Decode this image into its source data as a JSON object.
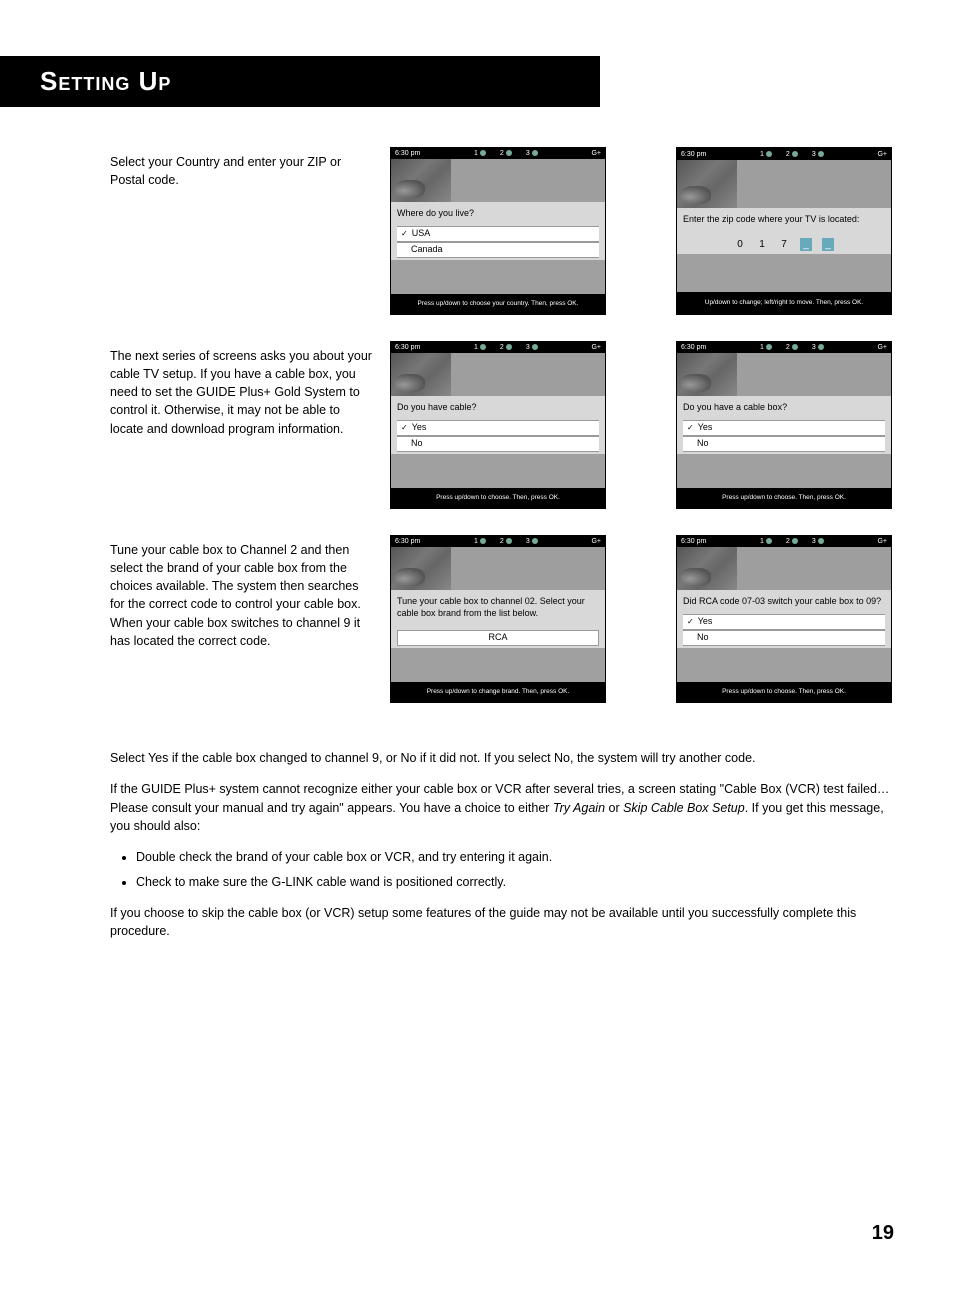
{
  "header": {
    "title": "Setting Up"
  },
  "rows": [
    {
      "desc": "Select your Country and enter your ZIP or Postal code.",
      "screens": [
        {
          "time": "6:30 pm",
          "prompt": "Where do you live?",
          "options": [
            {
              "label": "USA",
              "selected": true
            },
            {
              "label": "Canada",
              "selected": false
            }
          ],
          "footer": "Press up/down to choose your country.\nThen, press OK."
        },
        {
          "time": "6:30 pm",
          "prompt": "Enter the zip code where your TV is located:",
          "zip": [
            "0",
            "1",
            "7",
            "_",
            "_"
          ],
          "footer": "Up/down to change; left/right to move.\nThen, press OK."
        }
      ]
    },
    {
      "desc": "The next series of screens asks you about your cable TV setup. If you have a cable box, you need to set the GUIDE Plus+ Gold System to control it. Otherwise, it may not be able to locate and download program information.",
      "screens": [
        {
          "time": "6:30 pm",
          "prompt": "Do you have cable?",
          "options": [
            {
              "label": "Yes",
              "selected": true
            },
            {
              "label": "No",
              "selected": false
            }
          ],
          "footer": "Press up/down to choose. Then, press OK."
        },
        {
          "time": "6:30 pm",
          "prompt": "Do you have a cable box?",
          "options": [
            {
              "label": "Yes",
              "selected": true
            },
            {
              "label": "No",
              "selected": false
            }
          ],
          "footer": "Press up/down to choose. Then, press OK."
        }
      ]
    },
    {
      "desc": "Tune your cable box to Channel 2 and then select the brand of your cable box from the choices available. The system then searches for the correct code to control your cable box. When your cable box switches to channel 9 it has located the correct code.",
      "screens": [
        {
          "time": "6:30 pm",
          "prompt": "Tune your cable box to channel 02. Select your cable box brand from the list below.",
          "single": "RCA",
          "footer": "Press up/down to change brand.\nThen, press OK."
        },
        {
          "time": "6:30 pm",
          "prompt": "Did RCA code 07-03 switch your cable box to 09?",
          "options": [
            {
              "label": "Yes",
              "selected": true
            },
            {
              "label": "No",
              "selected": false
            }
          ],
          "footer": "Press up/down to choose. Then, press OK."
        }
      ]
    }
  ],
  "below": {
    "p1": "Select Yes if the cable box changed to channel 9, or No if it did not. If you select No, the system will try another code.",
    "p2a": "If the GUIDE Plus+ system cannot recognize either your cable box or VCR after several tries, a screen stating \"Cable Box (VCR) test failed…Please consult your manual and try again\" appears. You have a choice to either ",
    "p2_i1": "Try Again",
    "p2b": " or ",
    "p2_i2": "Skip Cable Box Setup",
    "p2c": ". If you get this message, you should also:",
    "bullets": [
      "Double check the brand of your cable box or VCR, and try entering it again.",
      "Check to make sure the G-LINK cable wand is positioned correctly."
    ],
    "p3": "If you choose to skip the cable box (or VCR) setup some features of the guide may not be available until you successfully complete this procedure."
  },
  "tabs": [
    "1",
    "2",
    "3"
  ],
  "logo": "G+",
  "page_number": "19"
}
